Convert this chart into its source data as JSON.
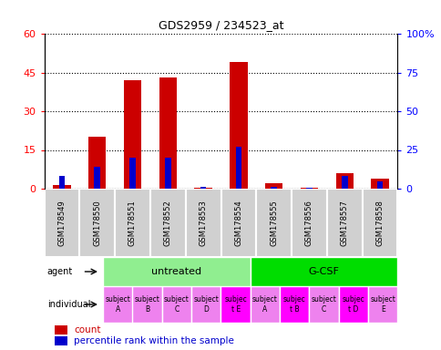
{
  "title": "GDS2959 / 234523_at",
  "samples": [
    "GSM178549",
    "GSM178550",
    "GSM178551",
    "GSM178552",
    "GSM178553",
    "GSM178554",
    "GSM178555",
    "GSM178556",
    "GSM178557",
    "GSM178558"
  ],
  "count_values": [
    1.5,
    20,
    42,
    43,
    0.5,
    49,
    2,
    0.5,
    6,
    4
  ],
  "percentile_values": [
    8,
    14,
    20,
    20,
    1,
    27,
    1,
    0.5,
    8,
    5
  ],
  "ylim_left": [
    0,
    60
  ],
  "ylim_right": [
    0,
    100
  ],
  "yticks_left": [
    0,
    15,
    30,
    45,
    60
  ],
  "yticks_right": [
    0,
    25,
    50,
    75,
    100
  ],
  "ytick_labels_left": [
    "0",
    "15",
    "30",
    "45",
    "60"
  ],
  "ytick_labels_right": [
    "0",
    "25",
    "50",
    "75",
    "100%"
  ],
  "agent_groups": [
    {
      "label": "untreated",
      "start": 0,
      "end": 5,
      "color": "#90ee90"
    },
    {
      "label": "G-CSF",
      "start": 5,
      "end": 10,
      "color": "#00dd00"
    }
  ],
  "individual_labels": [
    "subject\nA",
    "subject\nB",
    "subject\nC",
    "subject\nD",
    "subjec\nt E",
    "subject\nA",
    "subjec\nt B",
    "subject\nC",
    "subjec\nt D",
    "subject\nE"
  ],
  "individual_highlight": [
    4,
    6,
    8
  ],
  "bar_color_red": "#cc0000",
  "bar_color_blue": "#0000cc",
  "bar_width": 0.5,
  "bg_color_samples": "#d0d0d0",
  "bg_color_individual_normal": "#ee82ee",
  "bg_color_individual_highlight": "#ff00ff",
  "legend_count_color": "#cc0000",
  "legend_perc_color": "#0000cc"
}
